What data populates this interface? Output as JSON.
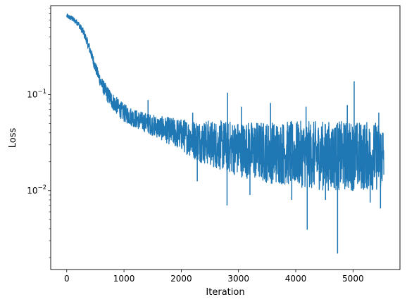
{
  "chart_data": {
    "type": "line",
    "title": "",
    "xlabel": "Iteration",
    "ylabel": "Loss",
    "y_scale": "log",
    "xlim": [
      -280,
      5820
    ],
    "ylim": [
      0.0015,
      0.85
    ],
    "grid": false,
    "legend": "none",
    "x_ticks": [
      {
        "value": 0,
        "label": "0"
      },
      {
        "value": 1000,
        "label": "1000"
      },
      {
        "value": 2000,
        "label": "2000"
      },
      {
        "value": 3000,
        "label": "3000"
      },
      {
        "value": 4000,
        "label": "4000"
      },
      {
        "value": 5000,
        "label": "5000"
      }
    ],
    "y_major_ticks": [
      {
        "value": 0.01,
        "base": "10",
        "exp": "−2"
      },
      {
        "value": 0.1,
        "base": "10",
        "exp": "−1"
      }
    ],
    "series": [
      {
        "color": "#1f77b4",
        "band_x": [
          0,
          100,
          200,
          300,
          400,
          500,
          600,
          700,
          800,
          900,
          1000,
          1200,
          1400,
          1600,
          1800,
          2000,
          2300,
          2600,
          3000,
          3500,
          4000,
          4500,
          5000,
          5540
        ],
        "band_upper": [
          0.7,
          0.66,
          0.59,
          0.48,
          0.34,
          0.22,
          0.155,
          0.125,
          0.105,
          0.09,
          0.08,
          0.07,
          0.064,
          0.06,
          0.058,
          0.056,
          0.055,
          0.054,
          0.053,
          0.053,
          0.053,
          0.053,
          0.053,
          0.052
        ],
        "band_lower": [
          0.63,
          0.58,
          0.52,
          0.4,
          0.27,
          0.17,
          0.115,
          0.085,
          0.07,
          0.06,
          0.052,
          0.045,
          0.04,
          0.035,
          0.03,
          0.026,
          0.02,
          0.017,
          0.014,
          0.012,
          0.011,
          0.01,
          0.01,
          0.01
        ],
        "spikes": [
          {
            "x": 1420,
            "y": 0.088
          },
          {
            "x": 2200,
            "y": 0.065
          },
          {
            "x": 2280,
            "y": 0.0125
          },
          {
            "x": 2810,
            "y": 0.105
          },
          {
            "x": 2800,
            "y": 0.007
          },
          {
            "x": 3050,
            "y": 0.075
          },
          {
            "x": 3200,
            "y": 0.009
          },
          {
            "x": 3560,
            "y": 0.082
          },
          {
            "x": 3930,
            "y": 0.008
          },
          {
            "x": 4180,
            "y": 0.075
          },
          {
            "x": 4200,
            "y": 0.0039
          },
          {
            "x": 4520,
            "y": 0.008
          },
          {
            "x": 4730,
            "y": 0.0022
          },
          {
            "x": 4900,
            "y": 0.078
          },
          {
            "x": 5020,
            "y": 0.138
          },
          {
            "x": 5300,
            "y": 0.0075
          },
          {
            "x": 5450,
            "y": 0.065
          },
          {
            "x": 5480,
            "y": 0.0065
          }
        ]
      }
    ]
  }
}
